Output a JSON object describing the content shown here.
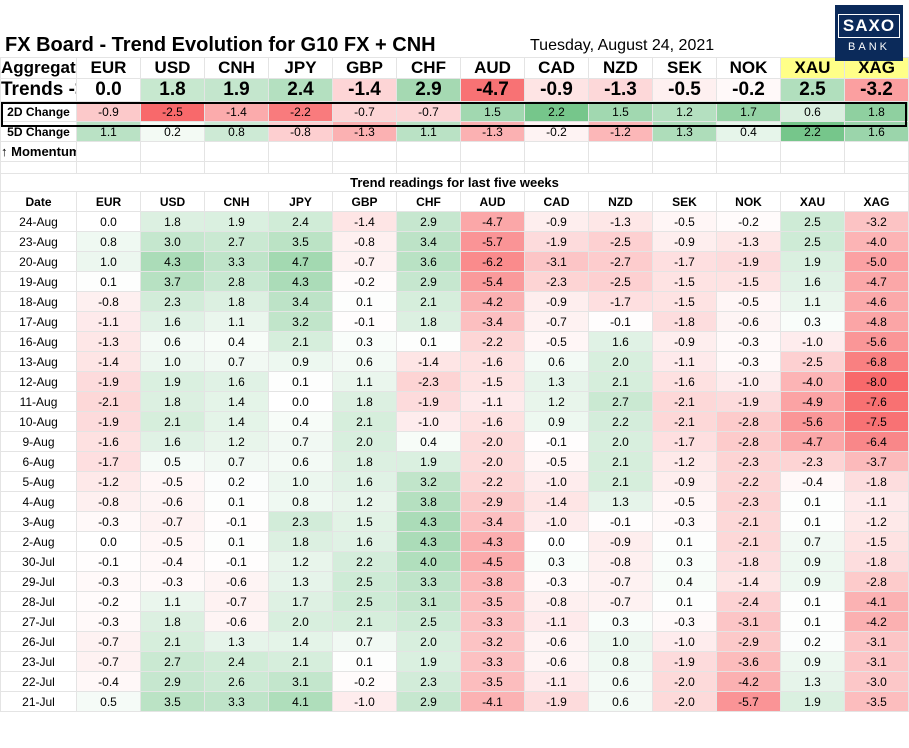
{
  "header": {
    "title": "FX Board - Trend Evolution for G10 FX + CNH",
    "date": "Tuesday, August 24, 2021",
    "logo_top": "SAXO",
    "logo_bottom": "BANK"
  },
  "summary": {
    "aggregate_label": "Aggregate",
    "trends_label": "Trends ->",
    "change2d_label": "2D Change",
    "change5d_label": "5D Change",
    "momentum_label": "↑ Momentum",
    "currencies": [
      "EUR",
      "USD",
      "CNH",
      "JPY",
      "GBP",
      "CHF",
      "AUD",
      "CAD",
      "NZD",
      "SEK",
      "NOK",
      "XAU",
      "XAG"
    ],
    "trends": [
      "0.0",
      "1.8",
      "1.9",
      "2.4",
      "-1.4",
      "2.9",
      "-4.7",
      "-0.9",
      "-1.3",
      "-0.5",
      "-0.2",
      "2.5",
      "-3.2"
    ],
    "change2d": [
      "-0.9",
      "-2.5",
      "-1.4",
      "-2.2",
      "-0.7",
      "-0.7",
      "1.5",
      "2.2",
      "1.5",
      "1.2",
      "1.7",
      "0.6",
      "1.8"
    ],
    "change5d": [
      "1.1",
      "0.2",
      "0.8",
      "-0.8",
      "-1.3",
      "1.1",
      "-1.3",
      "-0.2",
      "-1.2",
      "1.3",
      "0.4",
      "2.2",
      "1.6"
    ]
  },
  "history": {
    "section_label": "Trend readings for last five weeks",
    "date_header": "Date",
    "rows": [
      {
        "date": "24-Aug",
        "values": [
          "0.0",
          "1.8",
          "1.9",
          "2.4",
          "-1.4",
          "2.9",
          "-4.7",
          "-0.9",
          "-1.3",
          "-0.5",
          "-0.2",
          "2.5",
          "-3.2"
        ]
      },
      {
        "date": "23-Aug",
        "values": [
          "0.8",
          "3.0",
          "2.7",
          "3.5",
          "-0.8",
          "3.4",
          "-5.7",
          "-1.9",
          "-2.5",
          "-0.9",
          "-1.3",
          "2.5",
          "-4.0"
        ]
      },
      {
        "date": "20-Aug",
        "values": [
          "1.0",
          "4.3",
          "3.3",
          "4.7",
          "-0.7",
          "3.6",
          "-6.2",
          "-3.1",
          "-2.7",
          "-1.7",
          "-1.9",
          "1.9",
          "-5.0"
        ]
      },
      {
        "date": "19-Aug",
        "values": [
          "0.1",
          "3.7",
          "2.8",
          "4.3",
          "-0.2",
          "2.9",
          "-5.4",
          "-2.3",
          "-2.5",
          "-1.5",
          "-1.5",
          "1.6",
          "-4.7"
        ]
      },
      {
        "date": "18-Aug",
        "values": [
          "-0.8",
          "2.3",
          "1.8",
          "3.4",
          "0.1",
          "2.1",
          "-4.2",
          "-0.9",
          "-1.7",
          "-1.5",
          "-0.5",
          "1.1",
          "-4.6"
        ]
      },
      {
        "date": "17-Aug",
        "values": [
          "-1.1",
          "1.6",
          "1.1",
          "3.2",
          "-0.1",
          "1.8",
          "-3.4",
          "-0.7",
          "-0.1",
          "-1.8",
          "-0.6",
          "0.3",
          "-4.8"
        ]
      },
      {
        "date": "16-Aug",
        "values": [
          "-1.3",
          "0.6",
          "0.4",
          "2.1",
          "0.3",
          "0.1",
          "-2.2",
          "-0.5",
          "1.6",
          "-0.9",
          "-0.3",
          "-1.0",
          "-5.6"
        ]
      },
      {
        "date": "13-Aug",
        "values": [
          "-1.4",
          "1.0",
          "0.7",
          "0.9",
          "0.6",
          "-1.4",
          "-1.6",
          "0.6",
          "2.0",
          "-1.1",
          "-0.3",
          "-2.5",
          "-6.8"
        ]
      },
      {
        "date": "12-Aug",
        "values": [
          "-1.9",
          "1.9",
          "1.6",
          "0.1",
          "1.1",
          "-2.3",
          "-1.5",
          "1.3",
          "2.1",
          "-1.6",
          "-1.0",
          "-4.0",
          "-8.0"
        ]
      },
      {
        "date": "11-Aug",
        "values": [
          "-2.1",
          "1.8",
          "1.4",
          "0.0",
          "1.8",
          "-1.9",
          "-1.1",
          "1.2",
          "2.7",
          "-2.1",
          "-1.9",
          "-4.9",
          "-7.6"
        ]
      },
      {
        "date": "10-Aug",
        "values": [
          "-1.9",
          "2.1",
          "1.4",
          "0.4",
          "2.1",
          "-1.0",
          "-1.6",
          "0.9",
          "2.2",
          "-2.1",
          "-2.8",
          "-5.6",
          "-7.5"
        ]
      },
      {
        "date": "9-Aug",
        "values": [
          "-1.6",
          "1.6",
          "1.2",
          "0.7",
          "2.0",
          "0.4",
          "-2.0",
          "-0.1",
          "2.0",
          "-1.7",
          "-2.8",
          "-4.7",
          "-6.4"
        ]
      },
      {
        "date": "6-Aug",
        "values": [
          "-1.7",
          "0.5",
          "0.7",
          "0.6",
          "1.8",
          "1.9",
          "-2.0",
          "-0.5",
          "2.1",
          "-1.2",
          "-2.3",
          "-2.3",
          "-3.7"
        ]
      },
      {
        "date": "5-Aug",
        "values": [
          "-1.2",
          "-0.5",
          "0.2",
          "1.0",
          "1.6",
          "3.2",
          "-2.2",
          "-1.0",
          "2.1",
          "-0.9",
          "-2.2",
          "-0.4",
          "-1.8"
        ]
      },
      {
        "date": "4-Aug",
        "values": [
          "-0.8",
          "-0.6",
          "0.1",
          "0.8",
          "1.2",
          "3.8",
          "-2.9",
          "-1.4",
          "1.3",
          "-0.5",
          "-2.3",
          "0.1",
          "-1.1"
        ]
      },
      {
        "date": "3-Aug",
        "values": [
          "-0.3",
          "-0.7",
          "-0.1",
          "2.3",
          "1.5",
          "4.3",
          "-3.4",
          "-1.0",
          "-0.1",
          "-0.3",
          "-2.1",
          "0.1",
          "-1.2"
        ]
      },
      {
        "date": "2-Aug",
        "values": [
          "0.0",
          "-0.5",
          "0.1",
          "1.8",
          "1.6",
          "4.3",
          "-4.3",
          "0.0",
          "-0.9",
          "0.1",
          "-2.1",
          "0.7",
          "-1.5"
        ]
      },
      {
        "date": "30-Jul",
        "values": [
          "-0.1",
          "-0.4",
          "-0.1",
          "1.2",
          "2.2",
          "4.0",
          "-4.5",
          "0.3",
          "-0.8",
          "0.3",
          "-1.8",
          "0.9",
          "-1.8"
        ]
      },
      {
        "date": "29-Jul",
        "values": [
          "-0.3",
          "-0.3",
          "-0.6",
          "1.3",
          "2.5",
          "3.3",
          "-3.8",
          "-0.3",
          "-0.7",
          "0.4",
          "-1.4",
          "0.9",
          "-2.8"
        ]
      },
      {
        "date": "28-Jul",
        "values": [
          "-0.2",
          "1.1",
          "-0.7",
          "1.7",
          "2.5",
          "3.1",
          "-3.5",
          "-0.8",
          "-0.7",
          "0.1",
          "-2.4",
          "0.1",
          "-4.1"
        ]
      },
      {
        "date": "27-Jul",
        "values": [
          "-0.3",
          "1.8",
          "-0.6",
          "2.0",
          "2.1",
          "2.5",
          "-3.3",
          "-1.1",
          "0.3",
          "-0.3",
          "-3.1",
          "0.1",
          "-4.2"
        ]
      },
      {
        "date": "26-Jul",
        "values": [
          "-0.7",
          "2.1",
          "1.3",
          "1.4",
          "0.7",
          "2.0",
          "-3.2",
          "-0.6",
          "1.0",
          "-1.0",
          "-2.9",
          "0.2",
          "-3.1"
        ]
      },
      {
        "date": "23-Jul",
        "values": [
          "-0.7",
          "2.7",
          "2.4",
          "2.1",
          "0.1",
          "1.9",
          "-3.3",
          "-0.6",
          "0.8",
          "-1.9",
          "-3.6",
          "0.9",
          "-3.1"
        ]
      },
      {
        "date": "22-Jul",
        "values": [
          "-0.4",
          "2.9",
          "2.6",
          "3.1",
          "-0.2",
          "2.3",
          "-3.5",
          "-1.1",
          "0.6",
          "-2.0",
          "-4.2",
          "1.3",
          "-3.0"
        ]
      },
      {
        "date": "21-Jul",
        "values": [
          "0.5",
          "3.5",
          "3.3",
          "4.1",
          "-1.0",
          "2.9",
          "-4.1",
          "-1.9",
          "0.6",
          "-2.0",
          "-5.7",
          "1.9",
          "-3.5"
        ]
      }
    ]
  },
  "colors": {
    "positive": "#63be7b",
    "negative": "#f8696b",
    "highlight": "#ffff88",
    "logo_bg": "#0b2a5a"
  }
}
